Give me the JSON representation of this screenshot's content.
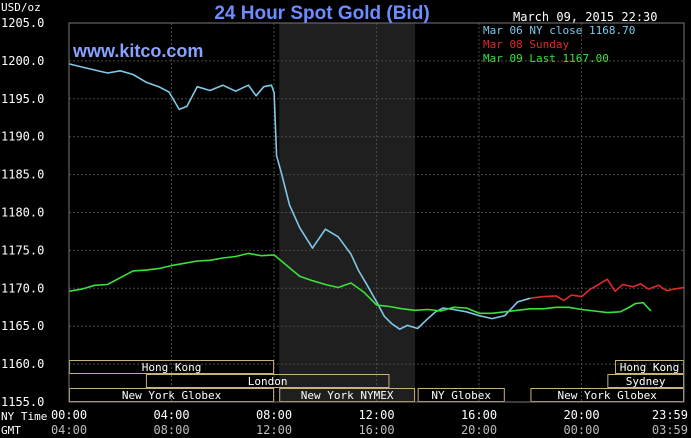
{
  "chart_data": {
    "type": "line",
    "title": "24 Hour Spot Gold (Bid)",
    "timestamp": "March 09, 2015 22:30",
    "website": "www.kitco.com",
    "ylabel": "USD/oz",
    "ylim": [
      1155.0,
      1205.0
    ],
    "y_ticks": [
      "1155.0",
      "1160.0",
      "1165.0",
      "1170.0",
      "1175.0",
      "1180.0",
      "1185.0",
      "1190.0",
      "1195.0",
      "1200.0",
      "1205.0"
    ],
    "x_axis": {
      "ny_time_label": "NY Time",
      "gmt_label": "GMT",
      "ny_ticks": [
        "00:00",
        "04:00",
        "08:00",
        "12:00",
        "16:00",
        "20:00",
        "23:59"
      ],
      "gmt_ticks": [
        "04:00",
        "08:00",
        "12:00",
        "16:00",
        "20:00",
        "00:00",
        "03:59"
      ]
    },
    "grid": true,
    "legend_position": "top-right",
    "colors": {
      "background": "#000000",
      "grid": "#4a4a4a",
      "axis_text": "#ffffff",
      "title": "#6e8cff",
      "website": "#8aa2ff",
      "timestamp": "#ffffff",
      "shaded_session": "#1f1f1f",
      "session_box": "#c8b27a"
    },
    "series": [
      {
        "name": "Mar 06 NY close 1168.70",
        "color": "#7ec8e8",
        "x": [
          0.0,
          0.5,
          1.0,
          1.5,
          2.0,
          2.5,
          3.0,
          3.5,
          3.9,
          4.3,
          4.6,
          5.0,
          5.5,
          6.0,
          6.5,
          7.0,
          7.3,
          7.6,
          7.9,
          8.0,
          8.1,
          8.3,
          8.6,
          9.0,
          9.5,
          10.0,
          10.5,
          11.0,
          11.3,
          11.6,
          12.0,
          12.3,
          12.6,
          12.9,
          13.2,
          13.6,
          14.0,
          14.3,
          14.6,
          15.0,
          15.5,
          16.0,
          16.5,
          17.0,
          17.5,
          18.0
        ],
        "y": [
          1199.6,
          1199.2,
          1198.8,
          1198.4,
          1198.7,
          1198.2,
          1197.2,
          1196.6,
          1195.9,
          1193.6,
          1194.0,
          1196.6,
          1196.1,
          1196.8,
          1196.0,
          1196.8,
          1195.4,
          1196.6,
          1196.8,
          1195.8,
          1187.5,
          1185.0,
          1181.0,
          1178.0,
          1175.3,
          1177.8,
          1176.8,
          1174.5,
          1172.3,
          1170.6,
          1168.2,
          1166.3,
          1165.3,
          1164.6,
          1165.1,
          1164.7,
          1166.0,
          1166.9,
          1167.4,
          1167.2,
          1166.9,
          1166.4,
          1166.0,
          1166.4,
          1168.2,
          1168.7
        ]
      },
      {
        "name": "Mar 08 Sunday",
        "color": "#dd2a2a",
        "x": [
          18.0,
          18.5,
          19.0,
          19.3,
          19.6,
          20.0,
          20.3,
          20.6,
          21.0,
          21.3,
          21.6,
          22.0,
          22.3,
          22.6,
          23.0,
          23.3,
          23.6,
          23.99
        ],
        "y": [
          1168.7,
          1168.9,
          1169.0,
          1168.4,
          1169.1,
          1168.9,
          1169.8,
          1170.4,
          1171.2,
          1169.6,
          1170.5,
          1170.2,
          1170.6,
          1169.9,
          1170.4,
          1169.7,
          1169.9,
          1170.1
        ]
      },
      {
        "name": "Mar 09 Last 1167.00",
        "color": "#3be03b",
        "x": [
          0.0,
          0.5,
          1.0,
          1.5,
          2.0,
          2.5,
          3.0,
          3.5,
          4.0,
          4.5,
          5.0,
          5.5,
          6.0,
          6.5,
          7.0,
          7.5,
          8.0,
          8.5,
          9.0,
          9.5,
          10.0,
          10.5,
          11.0,
          11.5,
          12.0,
          12.5,
          13.0,
          13.5,
          14.0,
          14.5,
          15.0,
          15.5,
          16.0,
          16.5,
          17.0,
          17.5,
          18.0,
          18.5,
          19.0,
          19.5,
          20.0,
          20.5,
          21.0,
          21.5,
          21.8,
          22.1,
          22.4,
          22.7
        ],
        "y": [
          1169.6,
          1169.9,
          1170.4,
          1170.5,
          1171.4,
          1172.3,
          1172.4,
          1172.6,
          1173.0,
          1173.3,
          1173.6,
          1173.7,
          1174.0,
          1174.2,
          1174.6,
          1174.3,
          1174.4,
          1173.0,
          1171.6,
          1171.0,
          1170.5,
          1170.1,
          1170.7,
          1169.5,
          1167.8,
          1167.6,
          1167.3,
          1167.1,
          1167.2,
          1167.0,
          1167.5,
          1167.4,
          1166.7,
          1166.7,
          1166.9,
          1167.1,
          1167.3,
          1167.3,
          1167.5,
          1167.5,
          1167.2,
          1167.0,
          1166.8,
          1166.9,
          1167.4,
          1168.0,
          1168.1,
          1167.0
        ]
      }
    ],
    "sessions": [
      {
        "label": "Hong Kong",
        "row": 0,
        "start": 0.0,
        "end": 8.0
      },
      {
        "label": "Hong Kong",
        "row": 0,
        "start": 21.3,
        "end": 23.99
      },
      {
        "label": "London",
        "row": 1,
        "start": 3.0,
        "end": 12.5
      },
      {
        "label": "Sydney",
        "row": 1,
        "start": 21.0,
        "end": 23.99
      },
      {
        "label": "New York Globex",
        "row": 2,
        "start": 0.0,
        "end": 8.0
      },
      {
        "label": "New York NYMEX",
        "row": 2,
        "start": 8.2,
        "end": 13.5
      },
      {
        "label": "NY Globex",
        "row": 2,
        "start": 13.6,
        "end": 17.0
      },
      {
        "label": "New York Globex",
        "row": 2,
        "start": 18.0,
        "end": 23.99
      }
    ],
    "shaded_period": [
      8.2,
      13.5
    ]
  }
}
